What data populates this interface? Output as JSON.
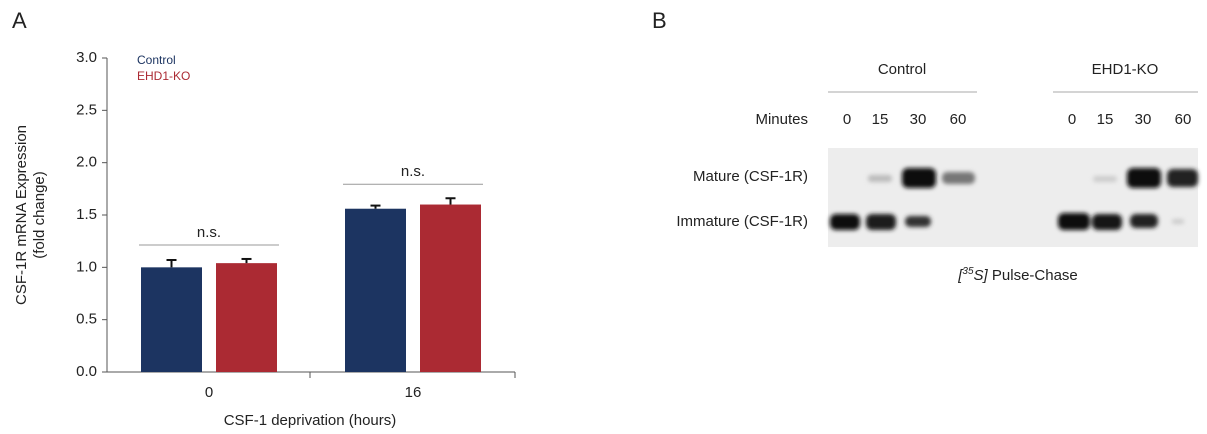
{
  "chart_data": {
    "type": "bar",
    "panel": "A",
    "ylabel": [
      "CSF-1R mRNA Expression",
      "(fold change)"
    ],
    "xlabel": "CSF-1 deprivation (hours)",
    "categories": [
      "0",
      "16"
    ],
    "series": [
      {
        "name": "Control",
        "color": "#1c3461",
        "values": [
          1.0,
          1.56
        ],
        "errors": [
          0.07,
          0.03
        ]
      },
      {
        "name": "EHD1-KO",
        "color": "#ab2a33",
        "values": [
          1.04,
          1.6
        ],
        "errors": [
          0.04,
          0.06
        ]
      }
    ],
    "annotations": [
      "n.s.",
      "n.s."
    ],
    "ylim": [
      0,
      3
    ],
    "yticks": [
      {
        "value": 0,
        "label": "0.0"
      },
      0.5,
      {
        "value": 1,
        "label": "1.0"
      },
      1.5,
      {
        "value": 2,
        "label": "2.0"
      },
      2.5,
      {
        "value": 3,
        "label": "3.0"
      }
    ]
  },
  "panel_b": {
    "label": "B",
    "groups": [
      "Control",
      "EHD1-KO"
    ],
    "time_label": "Minutes",
    "times": [
      "0",
      "15",
      "30",
      "60"
    ],
    "rows": [
      "Mature (CSF-1R)",
      "Immature (CSF-1R)"
    ],
    "caption": [
      "[",
      "35",
      "S]",
      " Pulse-Chase"
    ]
  }
}
